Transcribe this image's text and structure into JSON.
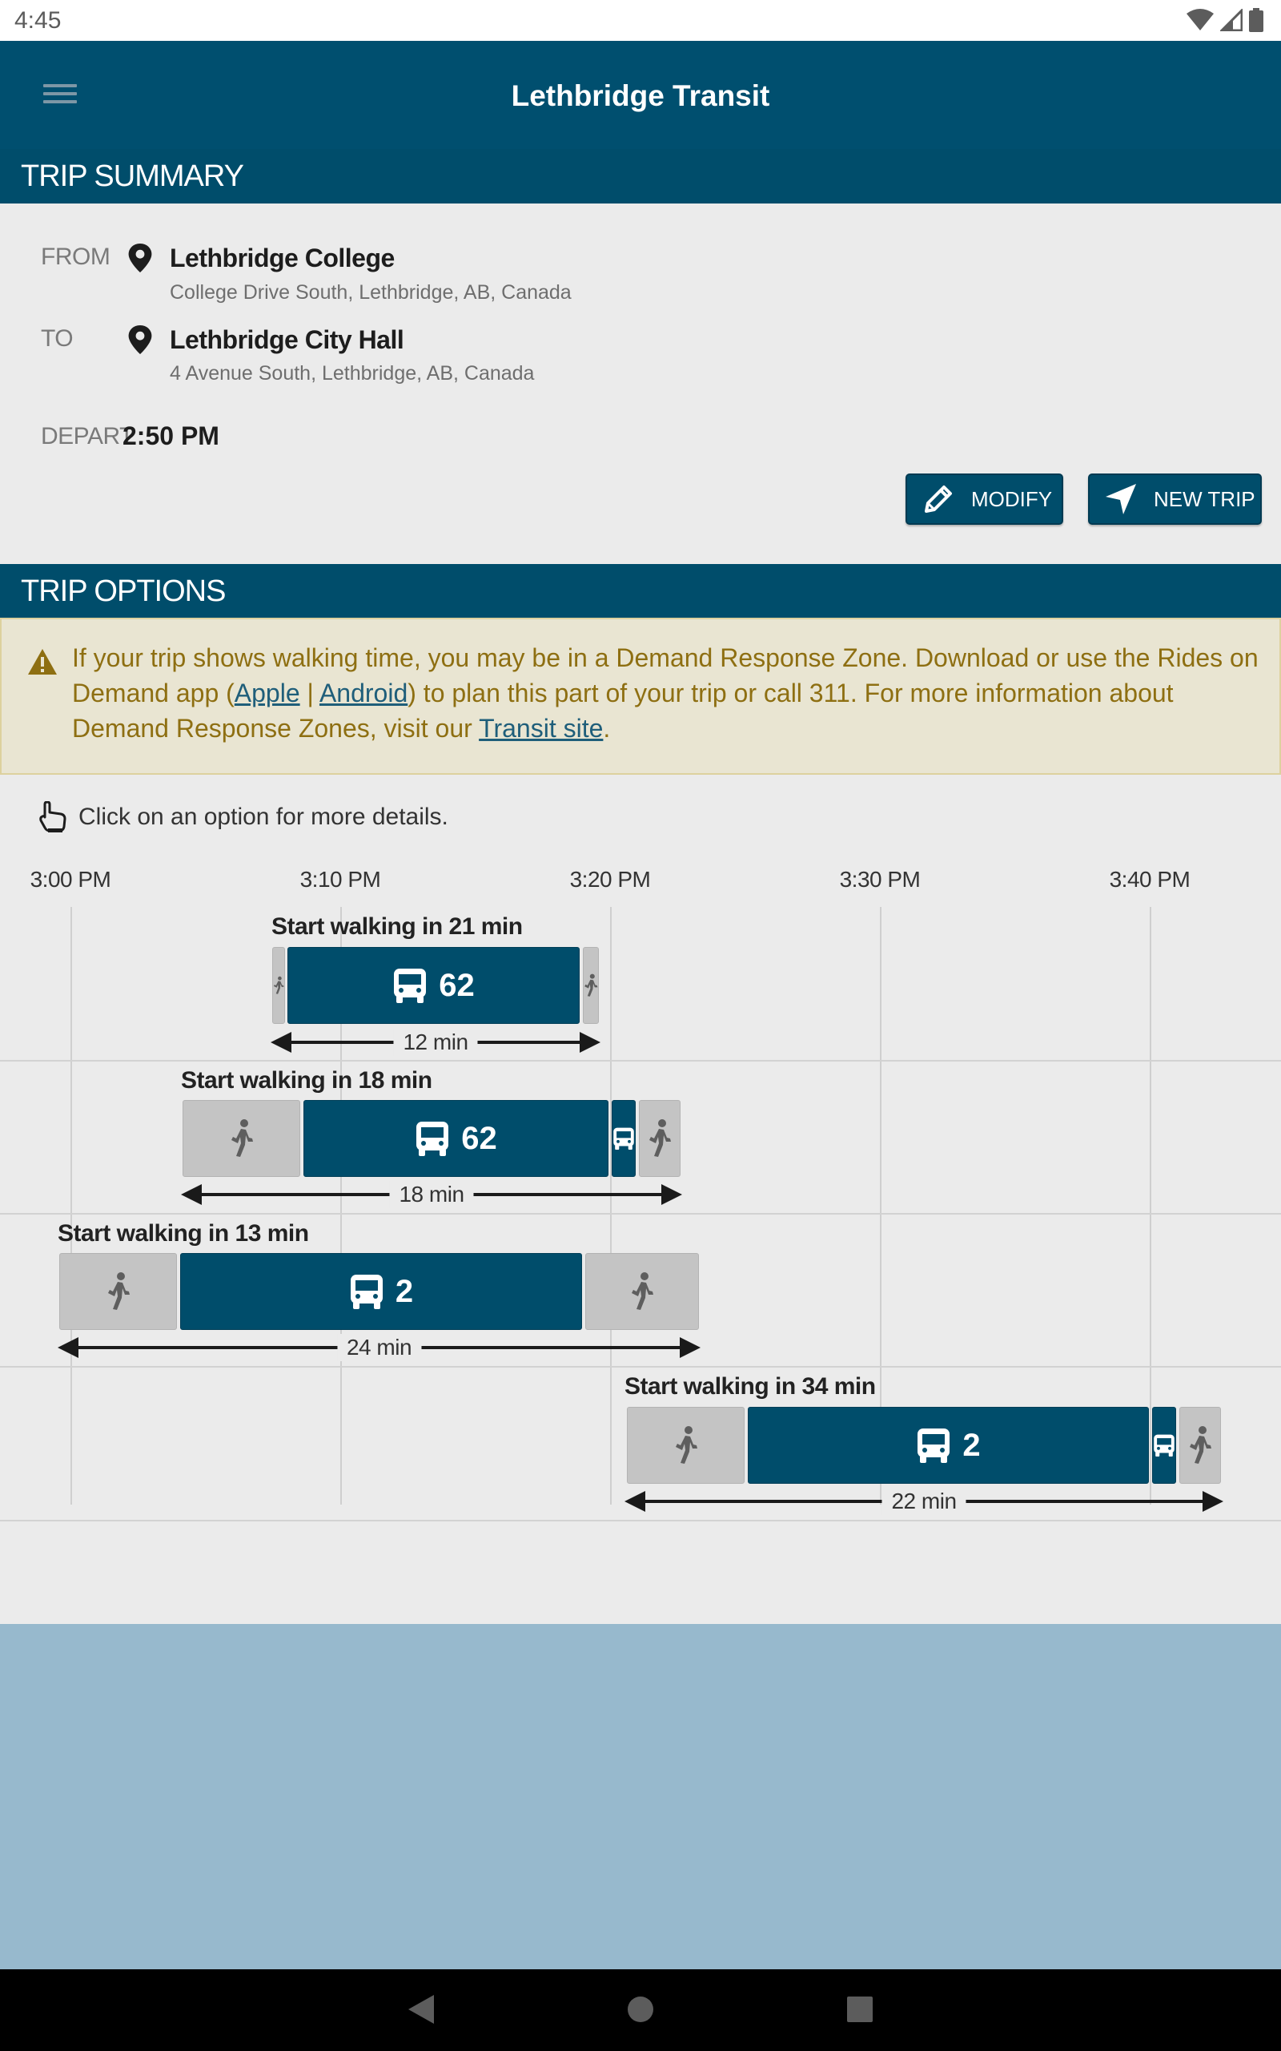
{
  "status_bar": {
    "time": "4:45"
  },
  "header": {
    "title": "Lethbridge Transit"
  },
  "trip_summary": {
    "heading": "TRIP SUMMARY",
    "from_label": "FROM",
    "from_name": "Lethbridge College",
    "from_address": "College Drive South, Lethbridge, AB, Canada",
    "to_label": "TO",
    "to_name": "Lethbridge City Hall",
    "to_address": "4 Avenue South, Lethbridge, AB, Canada",
    "depart_label": "DEPART",
    "depart_time": "2:50 PM",
    "modify_label": "MODIFY",
    "new_trip_label": "NEW TRIP"
  },
  "trip_options": {
    "heading": "TRIP OPTIONS",
    "alert": {
      "text_1": "If your trip shows walking time, you may be in a Demand Response Zone. Download or use the Rides on Demand app (",
      "link_apple": "Apple",
      "sep": " | ",
      "link_android": "Android",
      "text_2": ") to plan this part of your trip or call 311. For more information about Demand Response Zones, visit our ",
      "link_transit": "Transit site",
      "text_3": "."
    },
    "hint": "Click on an option for more details.",
    "time_ticks": [
      "3:00 PM",
      "3:10 PM",
      "3:20 PM",
      "3:30 PM",
      "3:40 PM"
    ],
    "options": [
      {
        "title": "Start walking in 21 min",
        "duration": "12 min",
        "route": "62"
      },
      {
        "title": "Start walking in 18 min",
        "duration": "18 min",
        "route": "62"
      },
      {
        "title": "Start walking in 13 min",
        "duration": "24 min",
        "route": "2"
      },
      {
        "title": "Start walking in 34 min",
        "duration": "22 min",
        "route": "2"
      }
    ]
  },
  "colors": {
    "brand": "#004f6f",
    "alert_bg": "#e9e5d2",
    "alert_text": "#8e6f12",
    "walk_segment": "#c4c4c4",
    "bus_segment": "#004d6b"
  },
  "icons": [
    "wifi-icon",
    "signal-icon",
    "battery-icon",
    "menu-icon",
    "map-pin-icon",
    "pencil-icon",
    "navigation-arrow-icon",
    "warning-icon",
    "pointer-hand-icon",
    "bus-icon",
    "walking-person-icon",
    "back-icon",
    "home-icon",
    "recents-icon"
  ]
}
